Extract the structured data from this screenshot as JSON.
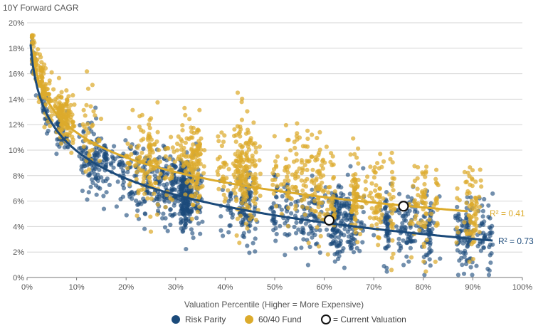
{
  "chart_data": {
    "type": "scatter",
    "ylabel": "10Y Forward CAGR",
    "xlabel": "Valuation Percentile (Higher = More Expensive)",
    "xlim": [
      0,
      100
    ],
    "ylim": [
      0,
      20
    ],
    "x_ticks": [
      0,
      10,
      20,
      30,
      40,
      50,
      60,
      70,
      80,
      90,
      100
    ],
    "x_tick_labels": [
      "0%",
      "10%",
      "20%",
      "30%",
      "40%",
      "50%",
      "60%",
      "70%",
      "80%",
      "90%",
      "100%"
    ],
    "y_ticks": [
      0,
      2,
      4,
      6,
      8,
      10,
      12,
      14,
      16,
      18,
      20
    ],
    "y_tick_labels": [
      "0%",
      "2%",
      "4%",
      "6%",
      "8%",
      "10%",
      "12%",
      "14%",
      "16%",
      "18%",
      "20%"
    ],
    "grid": "horizontal",
    "legend_position": "bottom",
    "series": [
      {
        "name": "Risk Parity",
        "color": "#1b4a7a",
        "point_count": 1500,
        "x_range": [
          1,
          94
        ],
        "trend": {
          "type": "logarithmic",
          "x_range": [
            0.7,
            94
          ],
          "start_y": 18.3,
          "end_y": 2.9,
          "r2_label": "R² = 0.73"
        }
      },
      {
        "name": "60/40 Fund",
        "color": "#dcab2c",
        "point_count": 1300,
        "x_range": [
          1,
          92
        ],
        "trend": {
          "type": "logarithmic",
          "x_range": [
            1,
            89
          ],
          "start_y": 17.9,
          "end_y": 5.2,
          "r2_label": "R² = 0.41"
        }
      }
    ],
    "current_valuation": {
      "label": "= Current Valuation",
      "points": [
        {
          "series": "Risk Parity",
          "x": 61,
          "y": 4.5
        },
        {
          "series": "60/40 Fund",
          "x": 76,
          "y": 5.6
        }
      ]
    }
  }
}
